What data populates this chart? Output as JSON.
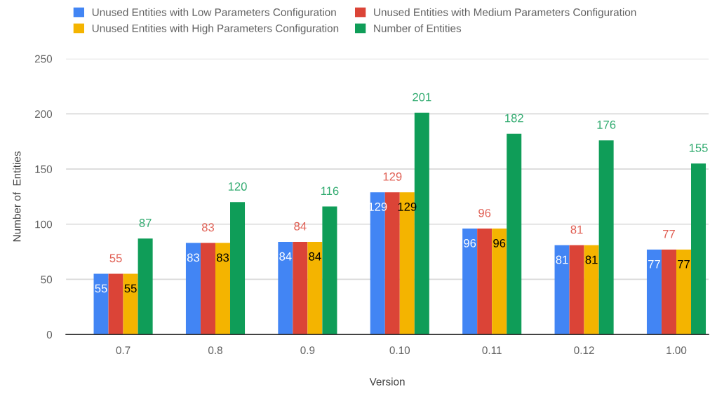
{
  "chart_data": {
    "type": "bar",
    "xlabel": "Version",
    "ylabel": "Number of  Entities",
    "categories": [
      "0.7",
      "0.8",
      "0.9",
      "0.10",
      "0.11",
      "0.12",
      "1.00"
    ],
    "series": [
      {
        "name": "Unused Entities with Low Parameters Configuration",
        "color": "#4285f4",
        "values": [
          55,
          83,
          84,
          129,
          96,
          81,
          77
        ]
      },
      {
        "name": "Unused Entities with Medium Parameters Configuration",
        "color": "#db4437",
        "values": [
          55,
          83,
          84,
          129,
          96,
          81,
          77
        ]
      },
      {
        "name": "Unused Entities with High Parameters Configuration",
        "color": "#f4b400",
        "values": [
          55,
          83,
          84,
          129,
          96,
          81,
          77
        ]
      },
      {
        "name": "Number of Entities",
        "color": "#0f9d58",
        "values": [
          87,
          120,
          116,
          201,
          182,
          176,
          155
        ]
      }
    ],
    "ylim": [
      0,
      250
    ],
    "yticks": [
      0,
      50,
      100,
      150,
      200,
      250
    ],
    "grid": "y",
    "legend": "top",
    "data_labels": true
  }
}
